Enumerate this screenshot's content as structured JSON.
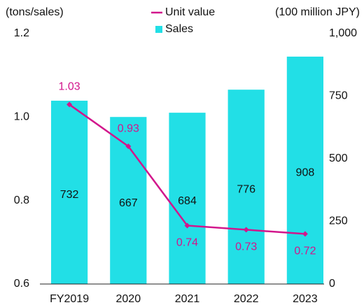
{
  "chart_data": {
    "type": "bar-line",
    "y_label": "(tons/sales)",
    "y2_label": "(100 million JPY)",
    "categories": [
      "FY2019",
      "2020",
      "2021",
      "2022",
      "2023"
    ],
    "series": [
      {
        "name": "Sales",
        "type": "bar",
        "axis": "y2",
        "color": "#22dfe6",
        "values": [
          732,
          667,
          684,
          776,
          908
        ]
      },
      {
        "name": "Unit value",
        "type": "line",
        "axis": "y",
        "color": "#d2168c",
        "values": [
          1.03,
          0.93,
          0.74,
          0.73,
          0.72
        ]
      }
    ],
    "ylim": [
      0.6,
      1.2
    ],
    "yticks": [
      0.6,
      0.8,
      {
        "value": 1,
        "label": "1.0"
      },
      1.2
    ],
    "y2lim": [
      0,
      1000
    ],
    "y2ticks": [
      0,
      250,
      500,
      750,
      {
        "value": 1000,
        "label": "1,000"
      }
    ],
    "grid": false
  }
}
